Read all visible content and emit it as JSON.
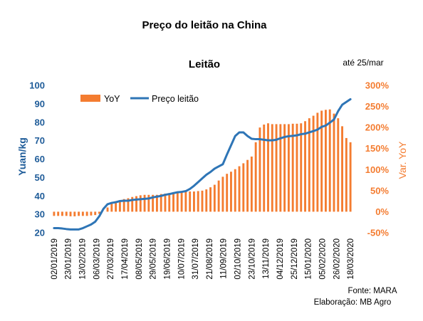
{
  "header": {
    "title": "Preço do leitão na China"
  },
  "notes": {
    "date": "até 25/mar",
    "source": "Fonte:  MARA",
    "credit": "Elaboração: MB Agro"
  },
  "colors": {
    "bar": "#F47C30",
    "line": "#2E75B6",
    "left_axis": "#1F5C99",
    "right_axis": "#F47C30",
    "text": "#000000"
  },
  "chart_data": {
    "type": "bar",
    "title": "Leitão",
    "ylabel": "Yuan/kg",
    "y2label": "Var. YoY",
    "ylim": [
      20,
      100
    ],
    "y2lim": [
      -50,
      300
    ],
    "yticks": [
      20,
      30,
      40,
      50,
      60,
      70,
      80,
      90,
      100
    ],
    "y2ticks": [
      "-50%",
      "0%",
      "50%",
      "100%",
      "150%",
      "200%",
      "250%",
      "300%"
    ],
    "y2tick_values": [
      -50,
      0,
      50,
      100,
      150,
      200,
      250,
      300
    ],
    "legend_position": "top-left",
    "x_tick_labels": [
      "02/01/2019",
      "23/01/2019",
      "13/02/2019",
      "06/03/2019",
      "27/03/2019",
      "17/04/2019",
      "08/05/2019",
      "29/05/2019",
      "19/06/2019",
      "10/07/2019",
      "31/07/2019",
      "21/08/2019",
      "11/09/2019",
      "02/10/2019",
      "23/10/2019",
      "13/11/2019",
      "04/12/2019",
      "25/12/2019",
      "15/01/2020",
      "05/02/2020",
      "26/02/2020",
      "18/03/2020"
    ],
    "series": [
      {
        "name": "YoY",
        "kind": "bar",
        "axis": "right",
        "values": [
          -10,
          -10,
          -10,
          -10,
          -11,
          -11,
          -10,
          -10,
          -10,
          -9,
          -8,
          -5,
          0,
          10,
          20,
          25,
          27,
          30,
          32,
          35,
          37,
          39,
          40,
          40,
          40,
          40,
          42,
          43,
          44,
          46,
          46,
          47,
          48,
          48,
          48,
          49,
          50,
          53,
          58,
          64,
          74,
          83,
          90,
          95,
          101,
          108,
          115,
          123,
          131,
          165,
          200,
          207,
          210,
          208,
          208,
          208,
          208,
          208,
          209,
          209,
          210,
          215,
          222,
          228,
          235,
          240,
          242,
          243,
          233,
          222,
          203,
          175,
          165
        ]
      },
      {
        "name": "Preço leitão",
        "kind": "line",
        "axis": "left",
        "values": [
          22.5,
          22.5,
          22.3,
          22.0,
          21.8,
          21.8,
          21.8,
          22.5,
          23.5,
          24.5,
          26.0,
          29.0,
          33.0,
          35.5,
          36.2,
          36.6,
          37.2,
          37.4,
          37.4,
          37.8,
          38.0,
          38.2,
          38.4,
          38.6,
          39.2,
          39.6,
          40.0,
          40.6,
          41.0,
          41.5,
          42.0,
          42.2,
          42.6,
          43.8,
          45.5,
          47.5,
          49.5,
          51.5,
          53.0,
          54.8,
          56.0,
          57.2,
          62.5,
          67.5,
          72.5,
          74.5,
          74.5,
          72.5,
          71.0,
          70.8,
          70.8,
          70.5,
          70.2,
          70.2,
          70.5,
          71.3,
          72.0,
          72.4,
          72.6,
          72.9,
          73.5,
          73.8,
          74.5,
          75.2,
          76.0,
          77.5,
          78.2,
          79.8,
          81.5,
          86.0,
          89.5,
          91.0,
          92.5
        ]
      }
    ]
  }
}
